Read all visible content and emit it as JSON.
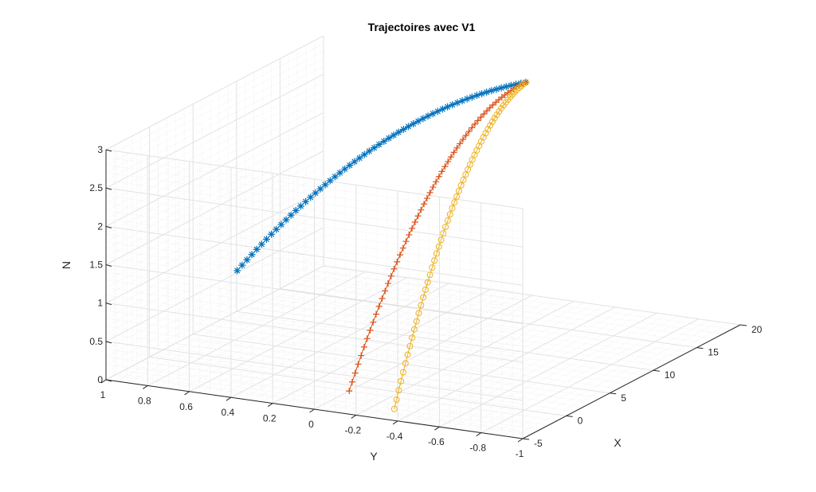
{
  "chart_data": {
    "type": "line",
    "title": "Trajectoires avec V1",
    "xlabel": "X",
    "ylabel": "Y",
    "zlabel": "N",
    "xlim": [
      -5,
      20
    ],
    "ylim": [
      -1,
      1
    ],
    "zlim": [
      0,
      3
    ],
    "xticks": [
      "-5",
      "0",
      "5",
      "10",
      "15",
      "20"
    ],
    "yticks": [
      "1",
      "0.8",
      "0.6",
      "0.4",
      "0.2",
      "0",
      "-0.2",
      "-0.4",
      "-0.6",
      "-0.8",
      "-1"
    ],
    "zticks": [
      "0",
      "0.5",
      "1",
      "1.5",
      "2",
      "2.5",
      "3"
    ],
    "grid": true,
    "minor_grid": true,
    "series": [
      {
        "marker": "*",
        "color": "#0072BD",
        "x_range": [
          0.5,
          16.9
        ],
        "y_range": [
          0.6,
          -0.1
        ],
        "z_range": [
          1.25,
          3.0
        ],
        "points": 60
      },
      {
        "marker": "+",
        "color": "#D95319",
        "x_range": [
          -1.0,
          16.9
        ],
        "y_range": [
          0.0,
          -0.1
        ],
        "z_range": [
          0.0,
          3.0
        ],
        "points": 60
      },
      {
        "marker": "o",
        "color": "#EDB120",
        "x_range": [
          -3.0,
          16.9
        ],
        "y_range": [
          -0.3,
          -0.1
        ],
        "z_range": [
          0.0,
          3.0
        ],
        "points": 60
      }
    ]
  }
}
